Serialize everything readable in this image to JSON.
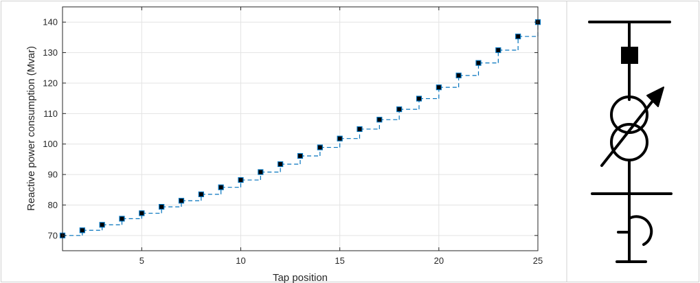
{
  "chart_data": {
    "type": "line",
    "title": "",
    "xlabel": "Tap position",
    "ylabel": "Reactive power consumption (Mvar)",
    "xlim": [
      1,
      25
    ],
    "ylim": [
      65,
      145
    ],
    "xticks": [
      5,
      10,
      15,
      20,
      25
    ],
    "yticks": [
      70,
      80,
      90,
      100,
      110,
      120,
      130,
      140
    ],
    "grid": true,
    "series": [
      {
        "style": "dashed-step",
        "color": "#0072BD",
        "x": [
          1,
          2,
          3,
          4,
          5,
          6,
          7,
          8,
          9,
          10,
          11,
          12,
          13,
          14,
          15,
          16,
          17,
          18,
          19,
          20,
          21,
          22,
          23,
          24,
          25
        ],
        "y": [
          70.0,
          71.7,
          73.5,
          75.5,
          77.3,
          79.4,
          81.4,
          83.5,
          85.8,
          88.2,
          90.8,
          93.4,
          96.1,
          98.9,
          101.8,
          104.9,
          108.0,
          111.4,
          114.9,
          118.6,
          122.5,
          126.6,
          130.8,
          135.3,
          140.0
        ]
      },
      {
        "style": "square-markers",
        "color": "#000000",
        "edge_color": "#0072BD",
        "x": [
          1,
          2,
          3,
          4,
          5,
          6,
          7,
          8,
          9,
          10,
          11,
          12,
          13,
          14,
          15,
          16,
          17,
          18,
          19,
          20,
          21,
          22,
          23,
          24,
          25
        ],
        "y": [
          70.0,
          71.7,
          73.5,
          75.5,
          77.3,
          79.4,
          81.4,
          83.5,
          85.8,
          88.2,
          90.8,
          93.4,
          96.1,
          98.9,
          101.8,
          104.9,
          108.0,
          111.4,
          114.9,
          118.6,
          122.5,
          126.6,
          130.8,
          135.3,
          140.0
        ]
      }
    ]
  },
  "diagram": {
    "symbol": "tap-changing-transformer-with-shunt-reactor"
  }
}
